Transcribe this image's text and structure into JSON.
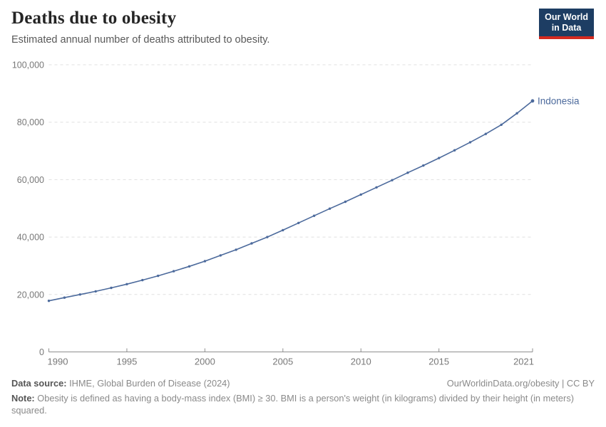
{
  "header": {
    "title": "Deaths due to obesity",
    "subtitle": "Estimated annual number of deaths attributed to obesity.",
    "logo": {
      "line1": "Our World",
      "line2": "in Data",
      "bg_color": "#1d3d63",
      "accent_color": "#d42a20"
    }
  },
  "chart_data": {
    "type": "line",
    "title": "Deaths due to obesity",
    "subtitle": "Estimated annual number of deaths attributed to obesity.",
    "xlim": [
      1990,
      2021
    ],
    "ylim": [
      0,
      100000
    ],
    "grid": "horizontal-dashed",
    "legend_position": "end-of-line-label",
    "colors": {
      "line": "#4C6A9C",
      "gridline": "#e0e0e0",
      "axis": "#8f8f8f",
      "tick_label": "#787878"
    },
    "x": [
      1990,
      1991,
      1992,
      1993,
      1994,
      1995,
      1996,
      1997,
      1998,
      1999,
      2000,
      2001,
      2002,
      2003,
      2004,
      2005,
      2006,
      2007,
      2008,
      2009,
      2010,
      2011,
      2012,
      2013,
      2014,
      2015,
      2016,
      2017,
      2018,
      2019,
      2020,
      2021
    ],
    "series": [
      {
        "name": "Indonesia",
        "color": "#4C6A9C",
        "values": [
          17800,
          18900,
          20000,
          21100,
          22300,
          23600,
          25000,
          26500,
          28100,
          29800,
          31600,
          33600,
          35600,
          37800,
          40000,
          42400,
          44900,
          47400,
          49900,
          52300,
          54800,
          57300,
          59800,
          62400,
          64900,
          67500,
          70200,
          73000,
          75900,
          79100,
          83100,
          87400
        ]
      }
    ],
    "x_ticks": [
      {
        "year": 1990,
        "label": "1990",
        "anchor": "start"
      },
      {
        "year": 1995,
        "label": "1995",
        "anchor": "middle"
      },
      {
        "year": 2000,
        "label": "2000",
        "anchor": "middle"
      },
      {
        "year": 2005,
        "label": "2005",
        "anchor": "middle"
      },
      {
        "year": 2010,
        "label": "2010",
        "anchor": "middle"
      },
      {
        "year": 2015,
        "label": "2015",
        "anchor": "middle"
      },
      {
        "year": 2021,
        "label": "2021",
        "anchor": "end"
      }
    ],
    "y_ticks": [
      {
        "value": 0,
        "label": "0"
      },
      {
        "value": 20000,
        "label": "20,000"
      },
      {
        "value": 40000,
        "label": "40,000"
      },
      {
        "value": 60000,
        "label": "60,000"
      },
      {
        "value": 80000,
        "label": "80,000"
      },
      {
        "value": 100000,
        "label": "100,000"
      }
    ]
  },
  "footer": {
    "datasource_label": "Data source:",
    "datasource_text": " IHME, Global Burden of Disease (2024)",
    "link_text": "OurWorldinData.org/obesity | CC BY",
    "note_label": "Note:",
    "note_text": " Obesity is defined as having a body-mass index (BMI) ≥ 30. BMI is a person's weight (in kilograms) divided by their height (in meters) squared."
  }
}
